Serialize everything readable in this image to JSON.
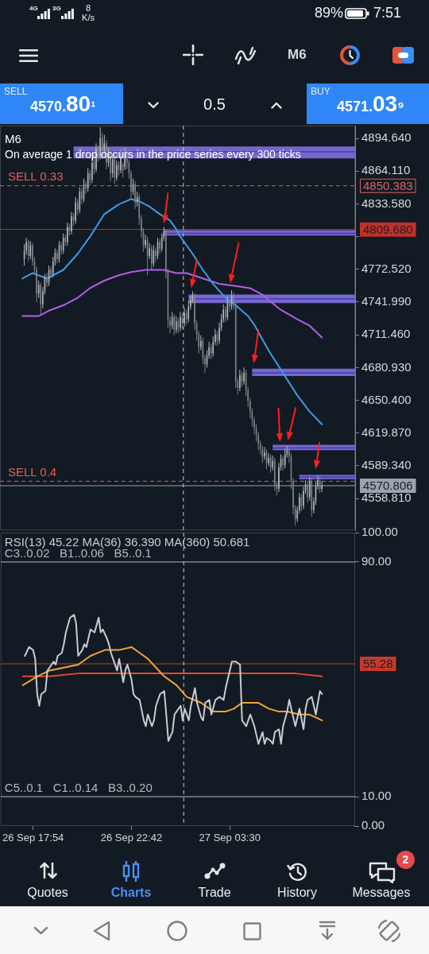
{
  "chart_data": [
    {
      "type": "other",
      "annotations": [
        "4G",
        "3G",
        "8 K/s",
        "89%",
        "7:51",
        "M6",
        "SELL",
        "4570.80¹",
        "0.5",
        "BUY",
        "4571.03⁹"
      ]
    },
    {
      "type": "candlestick",
      "title": "M6",
      "subtitle": "On average 1 drop occurs in the price series every 300 ticks",
      "colors": [
        "#b3b6ba",
        "#b3b6ba",
        "#7f8388",
        "#b3b6ba",
        "#7f8388",
        "#7f8388",
        "#7f8388",
        "#b3b6ba",
        "#7f8388",
        "#b3b6ba",
        "#b3b6ba",
        "#7f8388",
        "#b3b6ba",
        "#7f8388",
        "#b3b6ba",
        "#b3b6ba",
        "#7f8388",
        "#b3b6ba",
        "#7f8388",
        "#b3b6ba",
        "#7f8388",
        "#b3b6ba",
        "#7f8388",
        "#b3b6ba",
        "#7f8388",
        "#b3b6ba",
        "#7f8388",
        "#b3b6ba",
        "#7f8388",
        "#b3b6ba",
        "#7f8388",
        "#b3b6ba",
        "#7f8388",
        "#b3b6ba",
        "#7f8388",
        "#b3b6ba",
        "#7f8388",
        "#b3b6ba",
        "#7f8388",
        "#b3b6ba",
        "#7f8388",
        "#b3b6ba",
        "#7f8388",
        "#b3b6ba",
        "#7f8388",
        "#b3b6ba",
        "#7f8388",
        "#b3b6ba",
        "#7f8388",
        "#b3b6ba",
        "#7f8388",
        "#7f8388",
        "#7f8388",
        "#b3b6ba",
        "#7f8388",
        "#b3b6ba",
        "#7f8388",
        "#7f8388",
        "#7f8388",
        "#b3b6ba",
        "#7f8388",
        "#b3b6ba",
        "#7f8388",
        "#b3b6ba",
        "#7f8388",
        "#b3b6ba",
        "#7f8388",
        "#b3b6ba",
        "#b3b6ba",
        "#7f8388",
        "#7f8388",
        "#7f8388",
        "#b3b6ba",
        "#7f8388",
        "#b3b6ba",
        "#7f8388",
        "#b3b6ba",
        "#7f8388",
        "#b3b6ba",
        "#7f8388",
        "#b3b6ba",
        "#b3b6ba",
        "#b3b6ba",
        "#7f8388",
        "#7f8388",
        "#7f8388",
        "#b3b6ba",
        "#7f8388",
        "#7f8388",
        "#b3b6ba",
        "#b3b6ba",
        "#7f8388",
        "#b3b6ba",
        "#b3b6ba",
        "#7f8388",
        "#b3b6ba",
        "#b3b6ba",
        "#b3b6ba",
        "#7f8388",
        "#b3b6ba",
        "#7f8388",
        "#b3b6ba",
        "#7f8388",
        "#7f8388",
        "#7f8388",
        "#b3b6ba",
        "#7f8388",
        "#b3b6ba",
        "#7f8388",
        "#7f8388",
        "#7f8388",
        "#7f8388",
        "#7f8388",
        "#7f8388",
        "#7f8388",
        "#7f8388",
        "#7f8388",
        "#b3b6ba",
        "#7f8388",
        "#b3b6ba",
        "#7f8388",
        "#b3b6ba",
        "#7f8388",
        "#7f8388",
        "#b3b6ba",
        "#b3b6ba",
        "#7f8388",
        "#b3b6ba",
        "#b3b6ba",
        "#7f8388",
        "#7f8388",
        "#7f8388",
        "#7f8388",
        "#b3b6ba",
        "#b3b6ba",
        "#7f8388",
        "#b3b6ba",
        "#b3b6ba",
        "#7f8388",
        "#b3b6ba",
        "#7f8388",
        "#b3b6ba",
        "#b3b6ba",
        "#b3b6ba",
        "#7f8388",
        "#b3b6ba"
      ],
      "x": [
        "--09-26T17:30",
        "--09-26T17:36",
        "--09-26T17:42",
        "--09-26T17:48",
        "--09-26T17:54",
        "--09-26T18:00",
        "--09-26T18:06",
        "--09-26T18:12",
        "--09-26T18:18",
        "--09-26T18:24",
        "--09-26T18:30",
        "--09-26T18:36",
        "--09-26T18:42",
        "--09-26T18:48",
        "--09-26T18:54",
        "--09-26T19:00",
        "--09-26T19:06",
        "--09-26T19:12",
        "--09-26T19:18",
        "--09-26T19:24",
        "--09-26T19:30",
        "--09-26T19:36",
        "--09-26T19:42",
        "--09-26T19:48",
        "--09-26T19:54",
        "--09-26T20:00",
        "--09-26T20:06",
        "--09-26T20:12",
        "--09-26T20:18",
        "--09-26T20:24",
        "--09-26T20:30",
        "--09-26T20:36",
        "--09-26T20:42",
        "--09-26T20:48",
        "--09-26T20:54",
        "--09-26T21:00",
        "--09-26T21:06",
        "--09-26T21:12",
        "--09-26T21:18",
        "--09-26T21:24",
        "--09-26T21:30",
        "--09-26T21:36",
        "--09-26T21:42",
        "--09-26T21:48",
        "--09-26T21:54",
        "--09-26T22:00",
        "--09-26T22:06",
        "--09-26T22:12",
        "--09-26T22:18",
        "--09-26T22:24",
        "--09-26T22:30",
        "--09-26T22:36",
        "--09-26T22:42",
        "--09-26T22:48",
        "--09-26T22:54",
        "--09-26T23:00",
        "--09-26T23:06",
        "--09-26T23:12",
        "--09-26T23:18",
        "--09-26T23:24",
        "--09-26T23:30",
        "--09-26T23:36",
        "--09-26T23:42",
        "--09-26T23:48",
        "--09-26T23:54",
        "--09-27T00:00",
        "--09-27T00:06",
        "--09-27T00:12",
        "--09-27T00:18",
        "--09-27T00:24",
        "--09-27T00:30",
        "--09-27T00:36",
        "--09-27T00:42",
        "--09-27T00:48",
        "--09-27T00:54",
        "--09-27T01:00",
        "--09-27T01:06",
        "--09-27T01:12",
        "--09-27T01:18",
        "--09-27T01:24",
        "--09-27T01:30",
        "--09-27T01:36",
        "--09-27T01:42",
        "--09-27T01:48",
        "--09-27T01:54",
        "--09-27T02:00",
        "--09-27T02:06",
        "--09-27T02:12",
        "--09-27T02:18",
        "--09-27T02:24",
        "--09-27T02:30",
        "--09-27T02:36",
        "--09-27T02:42",
        "--09-27T02:48",
        "--09-27T02:54",
        "--09-27T03:00",
        "--09-27T03:06",
        "--09-27T03:12",
        "--09-27T03:18",
        "--09-27T03:24",
        "--09-27T03:30",
        "--09-27T03:36",
        "--09-27T03:42",
        "--09-27T03:48",
        "--09-27T03:54",
        "--09-27T04:00",
        "--09-27T04:06",
        "--09-27T04:12",
        "--09-27T04:18",
        "--09-27T04:24",
        "--09-27T04:30",
        "--09-27T04:36",
        "--09-27T04:42",
        "--09-27T04:48",
        "--09-27T04:54",
        "--09-27T05:00",
        "--09-27T05:06",
        "--09-27T05:12",
        "--09-27T05:18",
        "--09-27T05:24",
        "--09-27T05:30",
        "--09-27T05:36",
        "--09-27T05:42",
        "--09-27T05:48",
        "--09-27T05:54",
        "--09-27T06:00",
        "--09-27T06:06",
        "--09-27T06:12",
        "--09-27T06:18",
        "--09-27T06:24",
        "--09-27T06:30",
        "--09-27T06:36",
        "--09-27T06:42",
        "--09-27T06:48",
        "--09-27T06:54",
        "--09-27T07:00",
        "--09-27T07:06",
        "--09-27T07:12",
        "--09-27T07:18",
        "--09-27T07:24",
        "--09-27T07:30",
        "--09-27T07:36",
        "--09-27T07:42",
        "--09-27T07:48",
        "--09-27T07:54",
        "--09-27T08:00"
      ],
      "ohlc": [
        [
          4782,
          4796,
          4776,
          4790
        ],
        [
          4790,
          4802,
          4786,
          4798
        ],
        [
          4798,
          4800,
          4780,
          4785
        ],
        [
          4785,
          4799,
          4782,
          4795
        ],
        [
          4795,
          4797,
          4776,
          4780
        ],
        [
          4780,
          4784,
          4768,
          4772
        ],
        [
          4772,
          4775,
          4742,
          4750
        ],
        [
          4750,
          4762,
          4746,
          4758
        ],
        [
          4758,
          4760,
          4731,
          4740
        ],
        [
          4740,
          4756,
          4736,
          4752
        ],
        [
          4752,
          4768,
          4749,
          4765
        ],
        [
          4765,
          4769,
          4756,
          4760
        ],
        [
          4760,
          4776,
          4757,
          4772
        ],
        [
          4772,
          4775,
          4764,
          4768
        ],
        [
          4768,
          4784,
          4765,
          4780
        ],
        [
          4780,
          4792,
          4776,
          4788
        ],
        [
          4788,
          4791,
          4778,
          4782
        ],
        [
          4782,
          4799,
          4779,
          4795
        ],
        [
          4795,
          4798,
          4786,
          4790
        ],
        [
          4790,
          4806,
          4787,
          4802
        ],
        [
          4802,
          4805,
          4794,
          4798
        ],
        [
          4798,
          4816,
          4795,
          4812
        ],
        [
          4812,
          4815,
          4804,
          4808
        ],
        [
          4808,
          4826,
          4805,
          4822
        ],
        [
          4822,
          4825,
          4813,
          4818
        ],
        [
          4818,
          4840,
          4815,
          4835
        ],
        [
          4835,
          4838,
          4823,
          4828
        ],
        [
          4828,
          4849,
          4825,
          4845
        ],
        [
          4845,
          4848,
          4833,
          4838
        ],
        [
          4838,
          4857,
          4835,
          4852
        ],
        [
          4852,
          4855,
          4843,
          4848
        ],
        [
          4848,
          4867,
          4845,
          4862
        ],
        [
          4862,
          4865,
          4851,
          4856
        ],
        [
          4856,
          4877,
          4853,
          4872
        ],
        [
          4872,
          4875,
          4861,
          4866
        ],
        [
          4866,
          4890,
          4863,
          4885
        ],
        [
          4885,
          4888,
          4873,
          4878
        ],
        [
          4878,
          4905,
          4875,
          4895
        ],
        [
          4895,
          4900,
          4880,
          4884
        ],
        [
          4884,
          4898,
          4881,
          4890
        ],
        [
          4890,
          4893,
          4866,
          4872
        ],
        [
          4872,
          4886,
          4868,
          4880
        ],
        [
          4880,
          4883,
          4855,
          4862
        ],
        [
          4862,
          4880,
          4858,
          4875
        ],
        [
          4875,
          4878,
          4852,
          4858
        ],
        [
          4858,
          4874,
          4855,
          4870
        ],
        [
          4870,
          4873,
          4860,
          4865
        ],
        [
          4865,
          4884,
          4862,
          4878
        ],
        [
          4870,
          4872,
          4858,
          4864
        ],
        [
          4868,
          4886,
          4865,
          4880
        ],
        [
          4880,
          4883,
          4866,
          4872
        ],
        [
          4872,
          4875,
          4857,
          4862
        ],
        [
          4862,
          4865,
          4838,
          4845
        ],
        [
          4845,
          4857,
          4842,
          4852
        ],
        [
          4852,
          4855,
          4829,
          4835
        ],
        [
          4835,
          4845,
          4831,
          4840
        ],
        [
          4840,
          4843,
          4814,
          4820
        ],
        [
          4820,
          4823,
          4802,
          4808
        ],
        [
          4808,
          4811,
          4789,
          4795
        ],
        [
          4795,
          4805,
          4792,
          4800
        ],
        [
          4800,
          4803,
          4767,
          4785
        ],
        [
          4785,
          4797,
          4782,
          4792
        ],
        [
          4792,
          4795,
          4772,
          4778
        ],
        [
          4778,
          4795,
          4775,
          4790
        ],
        [
          4790,
          4793,
          4780,
          4785
        ],
        [
          4785,
          4802,
          4782,
          4798
        ],
        [
          4798,
          4801,
          4787,
          4792
        ],
        [
          4792,
          4806,
          4789,
          4802
        ],
        [
          4802,
          4812,
          4799,
          4808
        ],
        [
          4808,
          4810,
          4764,
          4770
        ],
        [
          4770,
          4773,
          4718,
          4725
        ],
        [
          4725,
          4729,
          4713,
          4720
        ],
        [
          4720,
          4733,
          4717,
          4728
        ],
        [
          4728,
          4731,
          4711,
          4716
        ],
        [
          4716,
          4729,
          4713,
          4724
        ],
        [
          4724,
          4727,
          4713,
          4718
        ],
        [
          4718,
          4733,
          4715,
          4728
        ],
        [
          4728,
          4731,
          4717,
          4722
        ],
        [
          4722,
          4737,
          4719,
          4732
        ],
        [
          4732,
          4735,
          4721,
          4726
        ],
        [
          4726,
          4743,
          4723,
          4738
        ],
        [
          4738,
          4748,
          4735,
          4744
        ],
        [
          4744,
          4752,
          4741,
          4748
        ],
        [
          4748,
          4750,
          4716,
          4722
        ],
        [
          4722,
          4725,
          4706,
          4712
        ],
        [
          4712,
          4715,
          4694,
          4700
        ],
        [
          4700,
          4711,
          4697,
          4706
        ],
        [
          4706,
          4709,
          4684,
          4690
        ],
        [
          4690,
          4693,
          4676,
          4684
        ],
        [
          4684,
          4697,
          4681,
          4692
        ],
        [
          4692,
          4705,
          4689,
          4700
        ],
        [
          4700,
          4703,
          4689,
          4694
        ],
        [
          4694,
          4710,
          4691,
          4705
        ],
        [
          4705,
          4717,
          4702,
          4712
        ],
        [
          4712,
          4715,
          4701,
          4706
        ],
        [
          4706,
          4723,
          4703,
          4718
        ],
        [
          4718,
          4731,
          4715,
          4726
        ],
        [
          4726,
          4740,
          4723,
          4735
        ],
        [
          4735,
          4738,
          4723,
          4728
        ],
        [
          4728,
          4747,
          4725,
          4742
        ],
        [
          4742,
          4745,
          4733,
          4738
        ],
        [
          4738,
          4753,
          4735,
          4748
        ],
        [
          4748,
          4751,
          4735,
          4740
        ],
        [
          4740,
          4743,
          4662,
          4668
        ],
        [
          4668,
          4671,
          4656,
          4662
        ],
        [
          4662,
          4679,
          4659,
          4674
        ],
        [
          4674,
          4677,
          4663,
          4668
        ],
        [
          4668,
          4681,
          4665,
          4676
        ],
        [
          4676,
          4679,
          4654,
          4660
        ],
        [
          4660,
          4663,
          4644,
          4650
        ],
        [
          4650,
          4653,
          4634,
          4640
        ],
        [
          4640,
          4643,
          4626,
          4632
        ],
        [
          4632,
          4635,
          4619,
          4625
        ],
        [
          4625,
          4628,
          4612,
          4618
        ],
        [
          4618,
          4621,
          4604,
          4610
        ],
        [
          4610,
          4613,
          4600,
          4605
        ],
        [
          4605,
          4608,
          4592,
          4598
        ],
        [
          4598,
          4607,
          4595,
          4602
        ],
        [
          4602,
          4605,
          4586,
          4592
        ],
        [
          4592,
          4601,
          4589,
          4597
        ],
        [
          4597,
          4600,
          4583,
          4588
        ],
        [
          4588,
          4599,
          4585,
          4594
        ],
        [
          4594,
          4597,
          4566,
          4572
        ],
        [
          4572,
          4575,
          4562,
          4568
        ],
        [
          4568,
          4592,
          4565,
          4588
        ],
        [
          4588,
          4600,
          4585,
          4596
        ],
        [
          4596,
          4599,
          4585,
          4590
        ],
        [
          4590,
          4605,
          4587,
          4600
        ],
        [
          4600,
          4608,
          4597,
          4604
        ],
        [
          4604,
          4607,
          4592,
          4598
        ],
        [
          4598,
          4601,
          4568,
          4575
        ],
        [
          4575,
          4578,
          4544,
          4550
        ],
        [
          4550,
          4553,
          4534,
          4540
        ],
        [
          4540,
          4552,
          4537,
          4548
        ],
        [
          4548,
          4564,
          4545,
          4560
        ],
        [
          4560,
          4563,
          4547,
          4552
        ],
        [
          4552,
          4570,
          4549,
          4566
        ],
        [
          4566,
          4576,
          4563,
          4572
        ],
        [
          4572,
          4575,
          4555,
          4560
        ],
        [
          4560,
          4579,
          4557,
          4575
        ],
        [
          4575,
          4578,
          4542,
          4548
        ],
        [
          4548,
          4560,
          4545,
          4556
        ],
        [
          4556,
          4574,
          4553,
          4570
        ],
        [
          4570,
          4580,
          4567,
          4576
        ],
        [
          4576,
          4579,
          4564,
          4568
        ],
        [
          4568,
          4575,
          4565,
          4571
        ]
      ],
      "series": [
        {
          "type": "line",
          "color": "#3d9be9",
          "x": [
            "--09-26T17:24",
            "--09-26T17:54",
            "--09-26T18:36",
            "--09-26T19:24",
            "--09-26T20:06",
            "--09-26T20:42",
            "--09-26T21:24",
            "--09-26T22:06",
            "--09-26T22:42",
            "--09-26T23:06",
            "--09-26T23:36",
            "--09-27T00:06",
            "--09-27T00:36",
            "--09-27T00:54",
            "--09-27T01:06",
            "--09-27T01:42",
            "--09-27T02:12",
            "--09-27T02:42",
            "--09-27T03:18",
            "--09-27T03:48",
            "--09-27T04:24",
            "--09-27T04:42",
            "--09-27T05:24",
            "--09-27T06:06",
            "--09-27T06:48",
            "--09-27T07:24",
            "--09-27T08:00"
          ],
          "values": [
            4764,
            4769,
            4764,
            4772,
            4787,
            4803,
            4824,
            4833,
            4838,
            4836,
            4831,
            4824,
            4818,
            4810,
            4803,
            4787,
            4772,
            4759,
            4746,
            4739,
            4729,
            4721,
            4697,
            4676,
            4655,
            4640,
            4628
          ]
        },
        {
          "type": "line",
          "color": "#b25ee6",
          "x": [
            "--09-26T17:24",
            "--09-26T18:12",
            "--09-26T18:42",
            "--09-26T19:24",
            "--09-26T20:06",
            "--09-26T20:42",
            "--09-26T21:24",
            "--09-26T22:06",
            "--09-26T22:42",
            "--09-26T23:24",
            "--09-27T00:18",
            "--09-27T00:54",
            "--09-27T01:24",
            "--09-27T02:12",
            "--09-27T03:00",
            "--09-27T03:48",
            "--09-27T04:30",
            "--09-27T05:06",
            "--09-27T05:54",
            "--09-27T06:48",
            "--09-27T07:24",
            "--09-27T08:00"
          ],
          "values": [
            4729,
            4729,
            4734,
            4739,
            4746,
            4755,
            4762,
            4767,
            4770,
            4772,
            4772,
            4769,
            4769,
            4764,
            4759,
            4757,
            4755,
            4749,
            4736,
            4726,
            4720,
            4709
          ]
        },
        {
          "type": "line",
          "color": "#4636b8",
          "x": [
            "--09-26T19:54",
            "--09-27T09:37"
          ],
          "values": [
            4882,
            4882
          ],
          "lower": [
            4876,
            4876
          ],
          "upper": [
            4887,
            4887
          ]
        },
        {
          "type": "line",
          "color": "#4636b8",
          "x": [
            "--09-27T00:18",
            "--09-27T09:37"
          ],
          "values": [
            4806,
            4806
          ],
          "lower": [
            4804,
            4804
          ],
          "upper": [
            4809,
            4809
          ]
        },
        {
          "type": "line",
          "color": "#4636b8",
          "x": [
            "--09-27T01:30",
            "--09-27T09:37"
          ],
          "values": [
            4745,
            4745
          ],
          "lower": [
            4741,
            4741
          ],
          "upper": [
            4749,
            4749
          ]
        },
        {
          "type": "line",
          "color": "#4636b8",
          "x": [
            "--09-27T04:36",
            "--09-27T09:37"
          ],
          "values": [
            4676,
            4676
          ],
          "lower": [
            4673,
            4673
          ],
          "upper": [
            4680,
            4680
          ]
        },
        {
          "type": "line",
          "color": "#4636b8",
          "x": [
            "--09-27T05:36",
            "--09-27T09:37"
          ],
          "values": [
            4606,
            4606
          ],
          "lower": [
            4604,
            4604
          ],
          "upper": [
            4609,
            4609
          ]
        },
        {
          "type": "line",
          "color": "#4636b8",
          "x": [
            "--09-27T06:54",
            "--09-27T09:37"
          ],
          "values": [
            4579,
            4579
          ],
          "lower": [
            4577,
            4577
          ],
          "upper": [
            4581,
            4581
          ]
        }
      ],
      "xlim": [
        "--09-26T16:19",
        "--09-27T09:37"
      ],
      "ylim": [
        4529.3,
        4906.5
      ],
      "yticks": [
        {
          "value": 4894.64,
          "label": "4894.640"
        },
        {
          "value": 4864.11,
          "label": "4864.110"
        },
        {
          "value": 4833.58,
          "label": "4833.580"
        },
        {
          "value": 4803.05,
          "label": null
        },
        {
          "value": 4772.52,
          "label": "4772.520"
        },
        {
          "value": 4741.99,
          "label": "4741.990"
        },
        {
          "value": 4711.46,
          "label": "4711.460"
        },
        {
          "value": 4680.93,
          "label": "4680.930"
        },
        {
          "value": 4650.4,
          "label": "4650.400"
        },
        {
          "value": 4619.87,
          "label": "4619.870"
        },
        {
          "value": 4589.34,
          "label": "4589.340"
        },
        {
          "value": 4558.81,
          "label": "4558.810"
        }
      ],
      "ref_lines": [
        {
          "axis": "y",
          "value": 4850.383,
          "label": "SELL 0.33",
          "color": "#e0615d",
          "line_style": "dashed"
        },
        {
          "axis": "y",
          "value": 4809.68,
          "color": "#c0302a"
        },
        {
          "axis": "y",
          "value": 4575,
          "label": "SELL 0.4",
          "color": "#e0615d",
          "line_style": "dashed"
        },
        {
          "axis": "y",
          "value": 4570.806,
          "color": "#9aa4ae"
        },
        {
          "axis": "x",
          "value": "--09-27T01:15",
          "color": "#c8cdd2",
          "line_style": "dashed"
        }
      ],
      "annotations": [
        {
          "text": "4850.383",
          "x": "--09-27T09:37",
          "y": 4850.383
        },
        {
          "text": "4809.680",
          "x": "--09-27T09:37",
          "y": 4809.68
        },
        {
          "text": "4570.806",
          "x": "--09-27T09:37",
          "y": 4570.806
        }
      ],
      "tick_labels": "y"
    },
    {
      "type": "line",
      "title": "RSI(13) 45.22 MA(36) 36.390 MA(360) 50.681",
      "series": [
        {
          "color": "#c9cdd2",
          "x": [
            "--09-26T17:30",
            "--09-26T17:42",
            "--09-26T17:54",
            "--09-26T18:00",
            "--09-26T18:06",
            "--09-26T18:12",
            "--09-26T18:18",
            "--09-26T18:30",
            "--09-26T18:36",
            "--09-26T18:42",
            "--09-26T18:54",
            "--09-26T19:00",
            "--09-26T19:06",
            "--09-26T19:18",
            "--09-26T19:24",
            "--09-26T19:30",
            "--09-26T19:42",
            "--09-26T19:54",
            "--09-26T20:00",
            "--09-26T20:06",
            "--09-26T20:18",
            "--09-26T20:24",
            "--09-26T20:30",
            "--09-26T20:42",
            "--09-26T20:54",
            "--09-26T21:06",
            "--09-26T21:12",
            "--09-26T21:18",
            "--09-26T21:30",
            "--09-26T21:36",
            "--09-26T21:42",
            "--09-26T21:54",
            "--09-26T22:00",
            "--09-26T22:06",
            "--09-26T22:18",
            "--09-26T22:24",
            "--09-26T22:30",
            "--09-26T22:42",
            "--09-26T22:48",
            "--09-26T22:54",
            "--09-26T23:06",
            "--09-26T23:18",
            "--09-26T23:24",
            "--09-26T23:30",
            "--09-26T23:42",
            "--09-26T23:48",
            "--09-26T23:54",
            "--09-27T00:06",
            "--09-27T00:18",
            "--09-27T00:24",
            "--09-27T00:30",
            "--09-27T00:42",
            "--09-27T00:48",
            "--09-27T00:54",
            "--09-27T01:06",
            "--09-27T01:12",
            "--09-27T01:18",
            "--09-27T01:30",
            "--09-27T01:36",
            "--09-27T01:48",
            "--09-27T01:54",
            "--09-27T02:06",
            "--09-27T02:12",
            "--09-27T02:18",
            "--09-27T02:30",
            "--09-27T02:36",
            "--09-27T02:48",
            "--09-27T03:00",
            "--09-27T03:12",
            "--09-27T03:18",
            "--09-27T03:30",
            "--09-27T03:36",
            "--09-27T03:48",
            "--09-27T04:00",
            "--09-27T04:06",
            "--09-27T04:18",
            "--09-27T04:24",
            "--09-27T04:30",
            "--09-27T04:42",
            "--09-27T04:48",
            "--09-27T04:54",
            "--09-27T05:06",
            "--09-27T05:12",
            "--09-27T05:18",
            "--09-27T05:30",
            "--09-27T05:36",
            "--09-27T05:42",
            "--09-27T05:54",
            "--09-27T06:00",
            "--09-27T06:06",
            "--09-27T06:18",
            "--09-27T06:24",
            "--09-27T06:30",
            "--09-27T06:42",
            "--09-27T06:48",
            "--09-27T06:54",
            "--09-27T07:06",
            "--09-27T07:12",
            "--09-27T07:18",
            "--09-27T07:30",
            "--09-27T07:36",
            "--09-27T07:42",
            "--09-27T07:54",
            "--09-27T08:00"
          ],
          "values": [
            58,
            61,
            60,
            57,
            45,
            41,
            45,
            46,
            53,
            54,
            56,
            55,
            58,
            59,
            62,
            66,
            71,
            72,
            69,
            58,
            60,
            62,
            61,
            67,
            66,
            71,
            66,
            67,
            64,
            62,
            59,
            55,
            53,
            57,
            49,
            53,
            55,
            50,
            45,
            44,
            43,
            36,
            34,
            38,
            34,
            36,
            41,
            45,
            46,
            38,
            29,
            32,
            38,
            39,
            41,
            36,
            40,
            36,
            41,
            47,
            42,
            37,
            36,
            42,
            43,
            38,
            43,
            44,
            43,
            47,
            53,
            56,
            56,
            55,
            36,
            34,
            36,
            38,
            34,
            31,
            28,
            32,
            28,
            30,
            29,
            28,
            32,
            33,
            28,
            34,
            39,
            43,
            40,
            34,
            37,
            40,
            33,
            40,
            43,
            44,
            41,
            38,
            46,
            45
          ]
        },
        {
          "color": "#f2a33a",
          "x": [
            "--09-26T17:24",
            "--09-26T18:06",
            "--09-26T18:42",
            "--09-26T19:24",
            "--09-26T20:06",
            "--09-26T20:42",
            "--09-26T21:24",
            "--09-26T22:06",
            "--09-26T22:42",
            "--09-26T23:06",
            "--09-26T23:30",
            "--09-26T23:54",
            "--09-27T00:18",
            "--09-27T00:54",
            "--09-27T01:24",
            "--09-27T02:06",
            "--09-27T02:42",
            "--09-27T03:18",
            "--09-27T03:42",
            "--09-27T04:06",
            "--09-27T04:30",
            "--09-27T04:54",
            "--09-27T05:24",
            "--09-27T05:54",
            "--09-27T06:18",
            "--09-27T06:54",
            "--09-27T07:24",
            "--09-27T08:00"
          ],
          "values": [
            48,
            51,
            53,
            54,
            55,
            58,
            60,
            60,
            61,
            59,
            57,
            54,
            51,
            48,
            44,
            42,
            39,
            39,
            40,
            42,
            42,
            42,
            40,
            39,
            39,
            38,
            38,
            36
          ]
        },
        {
          "color": "#e9472d",
          "x": [
            "--09-26T17:24",
            "--09-26T18:42",
            "--09-26T20:06",
            "--09-26T21:24",
            "--09-26T22:42",
            "--09-27T00:06",
            "--09-27T01:24",
            "--09-27T02:42",
            "--09-27T04:06",
            "--09-27T05:24",
            "--09-27T06:42",
            "--09-27T08:00"
          ],
          "values": [
            51,
            51,
            52,
            52,
            52,
            52,
            52,
            52,
            52,
            52,
            52,
            51
          ]
        }
      ],
      "xlim": [
        "--09-26T16:19",
        "--09-27T09:37"
      ],
      "xticks": [
        {
          "value": "--09-26T17:54",
          "label": "26 Sep 17:54"
        },
        {
          "value": "--09-26T22:42",
          "label": "26 Sep 22:42"
        },
        {
          "value": "--09-27T03:30",
          "label": "27 Sep 03:30"
        }
      ],
      "ylim": [
        0,
        100
      ],
      "yticks": [
        {
          "value": 0,
          "label": "0.00"
        },
        {
          "value": 10,
          "label": "10.00"
        },
        {
          "value": 90,
          "label": "90.00"
        },
        {
          "value": 100,
          "label": "100.00"
        }
      ],
      "ref_lines": [
        {
          "axis": "y",
          "value": 90,
          "label": "C3..0.02   B1..0.06   B5..0.1",
          "color": "#b4bac0"
        },
        {
          "axis": "y",
          "value": 10,
          "label": "C5..0.1   C1..0.14   B3..0.20",
          "color": "#b4bac0"
        },
        {
          "axis": "y",
          "value": 55.28,
          "color": "#c63a2a"
        },
        {
          "axis": "x",
          "value": "--09-27T01:15",
          "color": "#c8cdd2",
          "line_style": "dashed"
        }
      ],
      "annotations": [
        {
          "text": "55.28",
          "x": "--09-27T09:37",
          "y": 55.28
        }
      ]
    },
    {
      "type": "other",
      "annotations": [
        "Quotes",
        "Charts",
        "Trade",
        "History",
        "Messages",
        "2"
      ]
    }
  ]
}
